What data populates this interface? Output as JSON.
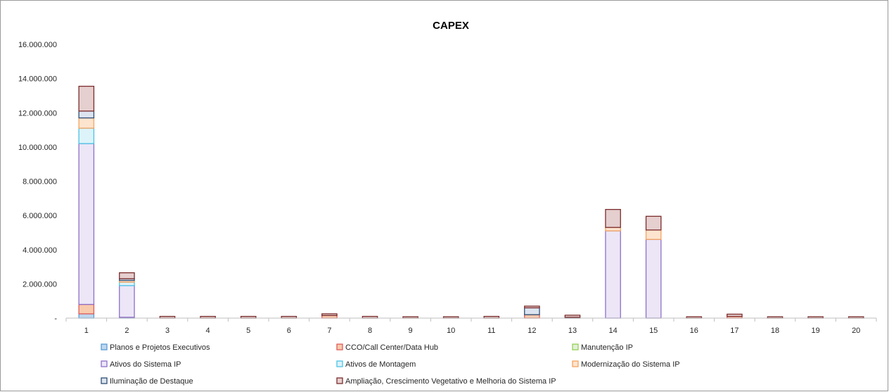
{
  "chart_data": {
    "type": "bar",
    "stacked": true,
    "title": "CAPEX",
    "xlabel": "",
    "ylabel": "",
    "ylim": [
      0,
      16000000
    ],
    "yticks": [
      0,
      2000000,
      4000000,
      6000000,
      8000000,
      10000000,
      12000000,
      14000000,
      16000000
    ],
    "ytick_labels": [
      "-",
      "2.000.000",
      "4.000.000",
      "6.000.000",
      "8.000.000",
      "10.000.000",
      "12.000.000",
      "14.000.000",
      "16.000.000"
    ],
    "categories": [
      "1",
      "2",
      "3",
      "4",
      "5",
      "6",
      "7",
      "8",
      "9",
      "10",
      "11",
      "12",
      "13",
      "14",
      "15",
      "16",
      "17",
      "18",
      "19",
      "20"
    ],
    "grid": false,
    "legend_position": "bottom",
    "series": [
      {
        "name": "Planos e Projetos Executivos",
        "fill": "#bdd7ee",
        "stroke": "#5b9bd5",
        "values": [
          250000,
          50000,
          0,
          0,
          0,
          0,
          0,
          0,
          0,
          0,
          0,
          0,
          0,
          0,
          0,
          0,
          0,
          0,
          0,
          0
        ]
      },
      {
        "name": "CCO/Call Center/Data Hub",
        "fill": "#f8cbad",
        "stroke": "#e05a5a",
        "values": [
          550000,
          0,
          0,
          0,
          0,
          0,
          150000,
          0,
          0,
          0,
          0,
          200000,
          0,
          0,
          0,
          0,
          100000,
          0,
          0,
          0
        ]
      },
      {
        "name": "Manutenção IP",
        "fill": "#e2efda",
        "stroke": "#92d050",
        "values": [
          0,
          0,
          0,
          0,
          0,
          0,
          0,
          0,
          0,
          0,
          0,
          0,
          0,
          0,
          0,
          0,
          0,
          0,
          0,
          0
        ]
      },
      {
        "name": "Ativos do Sistema IP",
        "fill": "#ece6f7",
        "stroke": "#8e6fc8",
        "values": [
          9400000,
          1850000,
          0,
          0,
          0,
          0,
          0,
          0,
          0,
          0,
          0,
          0,
          0,
          5100000,
          4600000,
          0,
          0,
          0,
          0,
          0
        ]
      },
      {
        "name": "Ativos de Montagem",
        "fill": "#ddf3fa",
        "stroke": "#4bc3e6",
        "values": [
          900000,
          200000,
          0,
          0,
          0,
          0,
          0,
          0,
          0,
          0,
          0,
          0,
          0,
          0,
          0,
          0,
          0,
          0,
          0,
          0
        ]
      },
      {
        "name": "Modernização do Sistema IP",
        "fill": "#fde4cf",
        "stroke": "#f4a460",
        "values": [
          600000,
          100000,
          0,
          0,
          0,
          0,
          0,
          0,
          0,
          0,
          0,
          0,
          0,
          200000,
          550000,
          0,
          0,
          0,
          0,
          0
        ]
      },
      {
        "name": "Iluminação de Destaque",
        "fill": "#dce4ef",
        "stroke": "#2f4f75",
        "values": [
          400000,
          100000,
          0,
          0,
          0,
          0,
          0,
          0,
          0,
          0,
          0,
          400000,
          50000,
          0,
          0,
          0,
          0,
          0,
          0,
          0
        ]
      },
      {
        "name": "Ampliação, Crescimento Vegetativo e Melhoria do Sistema IP",
        "fill": "#e6cfcf",
        "stroke": "#7b2c2c",
        "values": [
          1450000,
          350000,
          100000,
          100000,
          100000,
          100000,
          100000,
          100000,
          80000,
          80000,
          100000,
          100000,
          120000,
          1050000,
          800000,
          80000,
          130000,
          80000,
          80000,
          80000
        ]
      }
    ]
  }
}
